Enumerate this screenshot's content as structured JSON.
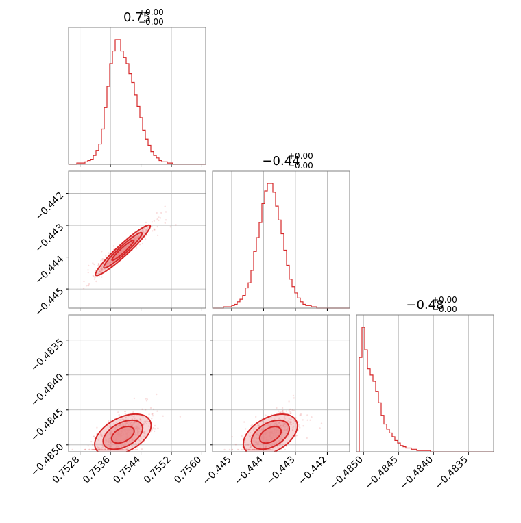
{
  "chart_data": {
    "type": "corner",
    "color": "#d62728",
    "fill_color": "#e8888a",
    "grid": true,
    "titles": [
      {
        "main": "0.75",
        "sup": "+0.00",
        "sub": "−0.00"
      },
      {
        "main": "−0.44",
        "sup": "+0.00",
        "sub": "−0.00"
      },
      {
        "main": "−0.48",
        "sup": "+0.00",
        "sub": "−0.00"
      }
    ],
    "params": [
      {
        "range": [
          0.7525,
          0.7561
        ],
        "ticks": [
          0.7528,
          0.7536,
          0.7544,
          0.7552,
          0.756
        ],
        "tick_labels": [
          "0.7528",
          "0.7536",
          "0.7544",
          "0.7552",
          "0.7560"
        ]
      },
      {
        "range": [
          -0.4456,
          -0.4413
        ],
        "ticks": [
          -0.445,
          -0.444,
          -0.443,
          -0.442
        ],
        "tick_labels": [
          "−0.445",
          "−0.444",
          "−0.443",
          "−0.442"
        ]
      },
      {
        "range": [
          -0.4851,
          -0.48314
        ],
        "ticks": [
          -0.485,
          -0.4845,
          -0.484,
          -0.4835
        ],
        "tick_labels": [
          "−0.4850",
          "−0.4845",
          "−0.4840",
          "−0.4835"
        ]
      }
    ],
    "histograms": [
      {
        "param": 0,
        "edges_range": [
          0.7525,
          0.7561
        ],
        "bins": 50,
        "counts": [
          0,
          0,
          0,
          1,
          1,
          1,
          2,
          3,
          4,
          7,
          11,
          16,
          28,
          45,
          62,
          80,
          90,
          99,
          99,
          90,
          85,
          80,
          72,
          65,
          55,
          46,
          37,
          27,
          20,
          15,
          10,
          7,
          5,
          3,
          2,
          2,
          1,
          1,
          0,
          0,
          0,
          0,
          0,
          0,
          0,
          0,
          0,
          0,
          0,
          0
        ]
      },
      {
        "param": 1,
        "edges_range": [
          -0.4456,
          -0.4413
        ],
        "bins": 50,
        "counts": [
          0,
          0,
          0,
          0,
          1,
          1,
          1,
          2,
          3,
          5,
          7,
          10,
          16,
          20,
          30,
          45,
          56,
          68,
          83,
          93,
          99,
          99,
          92,
          81,
          70,
          59,
          46,
          34,
          23,
          17,
          12,
          8,
          5,
          3,
          2,
          2,
          1,
          1,
          0,
          0,
          0,
          0,
          0,
          0,
          0,
          0,
          0,
          0,
          0,
          0
        ]
      },
      {
        "param": 2,
        "edges_range": [
          -0.4851,
          -0.48314
        ],
        "bins": 50,
        "counts": [
          0,
          75,
          99,
          81,
          66,
          61,
          56,
          48,
          39,
          29,
          22,
          18,
          15,
          12,
          9,
          7,
          5,
          4,
          3,
          3,
          2,
          2,
          1,
          1,
          1,
          1,
          1,
          0,
          0,
          0,
          0,
          0,
          0,
          0,
          0,
          0,
          0,
          0,
          0,
          0,
          0,
          0,
          0,
          0,
          0,
          0,
          0,
          0,
          0,
          0
        ]
      }
    ],
    "scatter_2d": [
      {
        "x_param": 0,
        "y_param": 1,
        "corr": 0.97
      },
      {
        "x_param": 0,
        "y_param": 2,
        "corr": 0.6
      },
      {
        "x_param": 1,
        "y_param": 2,
        "corr": 0.6
      }
    ]
  }
}
